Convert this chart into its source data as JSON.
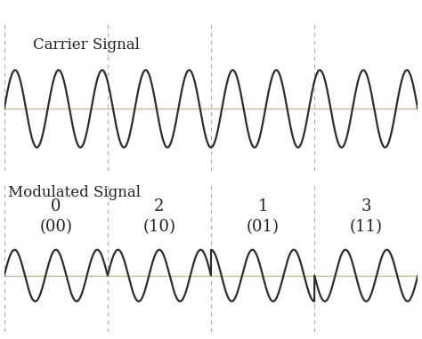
{
  "carrier_title": "Carrier Signal",
  "modulated_title": "Modulated Signal",
  "background_color": "#ffffff",
  "line_color": "#2d2d2d",
  "hline_color": "#c8b89a",
  "vline_color": "#aaaaaa",
  "carrier_total_cycles": 9.5,
  "segment_cycles": 2.5,
  "num_segments": 4,
  "symbol_labels_top": [
    "0",
    "2",
    "1",
    "3"
  ],
  "symbol_labels_bot": [
    "(00)",
    "(10)",
    "(01)",
    "(11)"
  ],
  "qpsk_phases_deg": [
    0,
    0,
    90,
    180
  ],
  "line_width": 1.6,
  "title_fontsize": 12,
  "label_fontsize": 13
}
